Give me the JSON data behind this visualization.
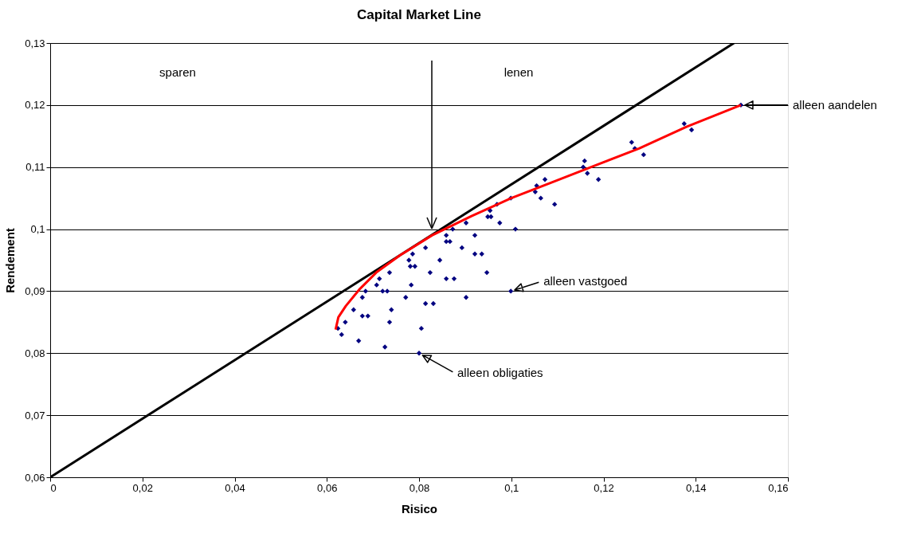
{
  "chart_data": {
    "type": "scatter",
    "title": "Capital Market Line",
    "xlabel": "Risico",
    "ylabel": "Rendement",
    "xlim": [
      0,
      0.16
    ],
    "ylim": [
      0.06,
      0.13
    ],
    "xticks": [
      {
        "value": 0,
        "label": "0"
      },
      {
        "value": 0.02,
        "label": "0,02"
      },
      {
        "value": 0.04,
        "label": "0,04"
      },
      {
        "value": 0.06,
        "label": "0,06"
      },
      {
        "value": 0.08,
        "label": "0,08"
      },
      {
        "value": 0.1,
        "label": "0,1"
      },
      {
        "value": 0.12,
        "label": "0,12"
      },
      {
        "value": 0.14,
        "label": "0,14"
      },
      {
        "value": 0.16,
        "label": "0,16"
      }
    ],
    "yticks": [
      {
        "value": 0.06,
        "label": "0,06"
      },
      {
        "value": 0.07,
        "label": "0,07"
      },
      {
        "value": 0.08,
        "label": "0,08"
      },
      {
        "value": 0.09,
        "label": "0,09"
      },
      {
        "value": 0.1,
        "label": "0,1"
      },
      {
        "value": 0.11,
        "label": "0,11"
      },
      {
        "value": 0.12,
        "label": "0,12"
      },
      {
        "value": 0.13,
        "label": "0,13"
      }
    ],
    "grid": "y",
    "series": [
      {
        "type": "line",
        "color": "#000000",
        "x": [
          0,
          0.1483
        ],
        "values": [
          0.06,
          0.13
        ]
      },
      {
        "color": "#000080",
        "marker": "diamond",
        "x": [
          0.0624,
          0.0632,
          0.064,
          0.0658,
          0.0669,
          0.0677,
          0.0677,
          0.0689,
          0.0684,
          0.0708,
          0.0714,
          0.0721,
          0.0731,
          0.0736,
          0.074,
          0.0736,
          0.0726,
          0.0771,
          0.0783,
          0.0778,
          0.0781,
          0.0791,
          0.0786,
          0.0814,
          0.0824,
          0.0814,
          0.0831,
          0.0805,
          0.08,
          0.0845,
          0.0859,
          0.0859,
          0.0867,
          0.0873,
          0.0902,
          0.0893,
          0.0859,
          0.0876,
          0.0921,
          0.0921,
          0.0936,
          0.0947,
          0.0902,
          0.0999,
          0.1009,
          0.0975,
          0.0949,
          0.0956,
          0.0954,
          0.0969,
          0.0999,
          0.1052,
          0.1055,
          0.1064,
          0.1073,
          0.1094,
          0.1156,
          0.1159,
          0.1165,
          0.1189,
          0.1261,
          0.1268,
          0.1287,
          0.1375,
          0.1391,
          0.1498
        ],
        "values": [
          0.084,
          0.083,
          0.085,
          0.087,
          0.082,
          0.089,
          0.086,
          0.086,
          0.09,
          0.091,
          0.092,
          0.09,
          0.09,
          0.093,
          0.087,
          0.085,
          0.081,
          0.089,
          0.091,
          0.095,
          0.094,
          0.094,
          0.096,
          0.097,
          0.093,
          0.088,
          0.088,
          0.084,
          0.08,
          0.095,
          0.099,
          0.098,
          0.098,
          0.1,
          0.101,
          0.097,
          0.092,
          0.092,
          0.099,
          0.096,
          0.096,
          0.093,
          0.089,
          0.09,
          0.1,
          0.101,
          0.102,
          0.102,
          0.103,
          0.104,
          0.105,
          0.106,
          0.107,
          0.105,
          0.108,
          0.104,
          0.11,
          0.111,
          0.109,
          0.108,
          0.114,
          0.113,
          0.112,
          0.117,
          0.116,
          0.12
        ]
      },
      {
        "type": "line",
        "color": "#ff0000",
        "marker": "none",
        "x": [
          0.0619,
          0.0625,
          0.0641,
          0.0672,
          0.0707,
          0.0759,
          0.0828,
          0.0914,
          0.1,
          0.1087,
          0.119,
          0.1277,
          0.138,
          0.1498
        ],
        "values": [
          0.0838,
          0.0858,
          0.0876,
          0.0904,
          0.093,
          0.0958,
          0.099,
          0.1021,
          0.105,
          0.1075,
          0.1105,
          0.113,
          0.1165,
          0.12
        ]
      }
    ],
    "annotations": [
      "sparen",
      "lenen",
      {
        "text": "alleen aandelen",
        "x": 0.1498,
        "y": 0.12
      },
      {
        "text": "alleen vastgoed",
        "x": 0.0999,
        "y": 0.09
      },
      {
        "text": "alleen obligaties",
        "x": 0.08,
        "y": 0.08
      }
    ]
  }
}
